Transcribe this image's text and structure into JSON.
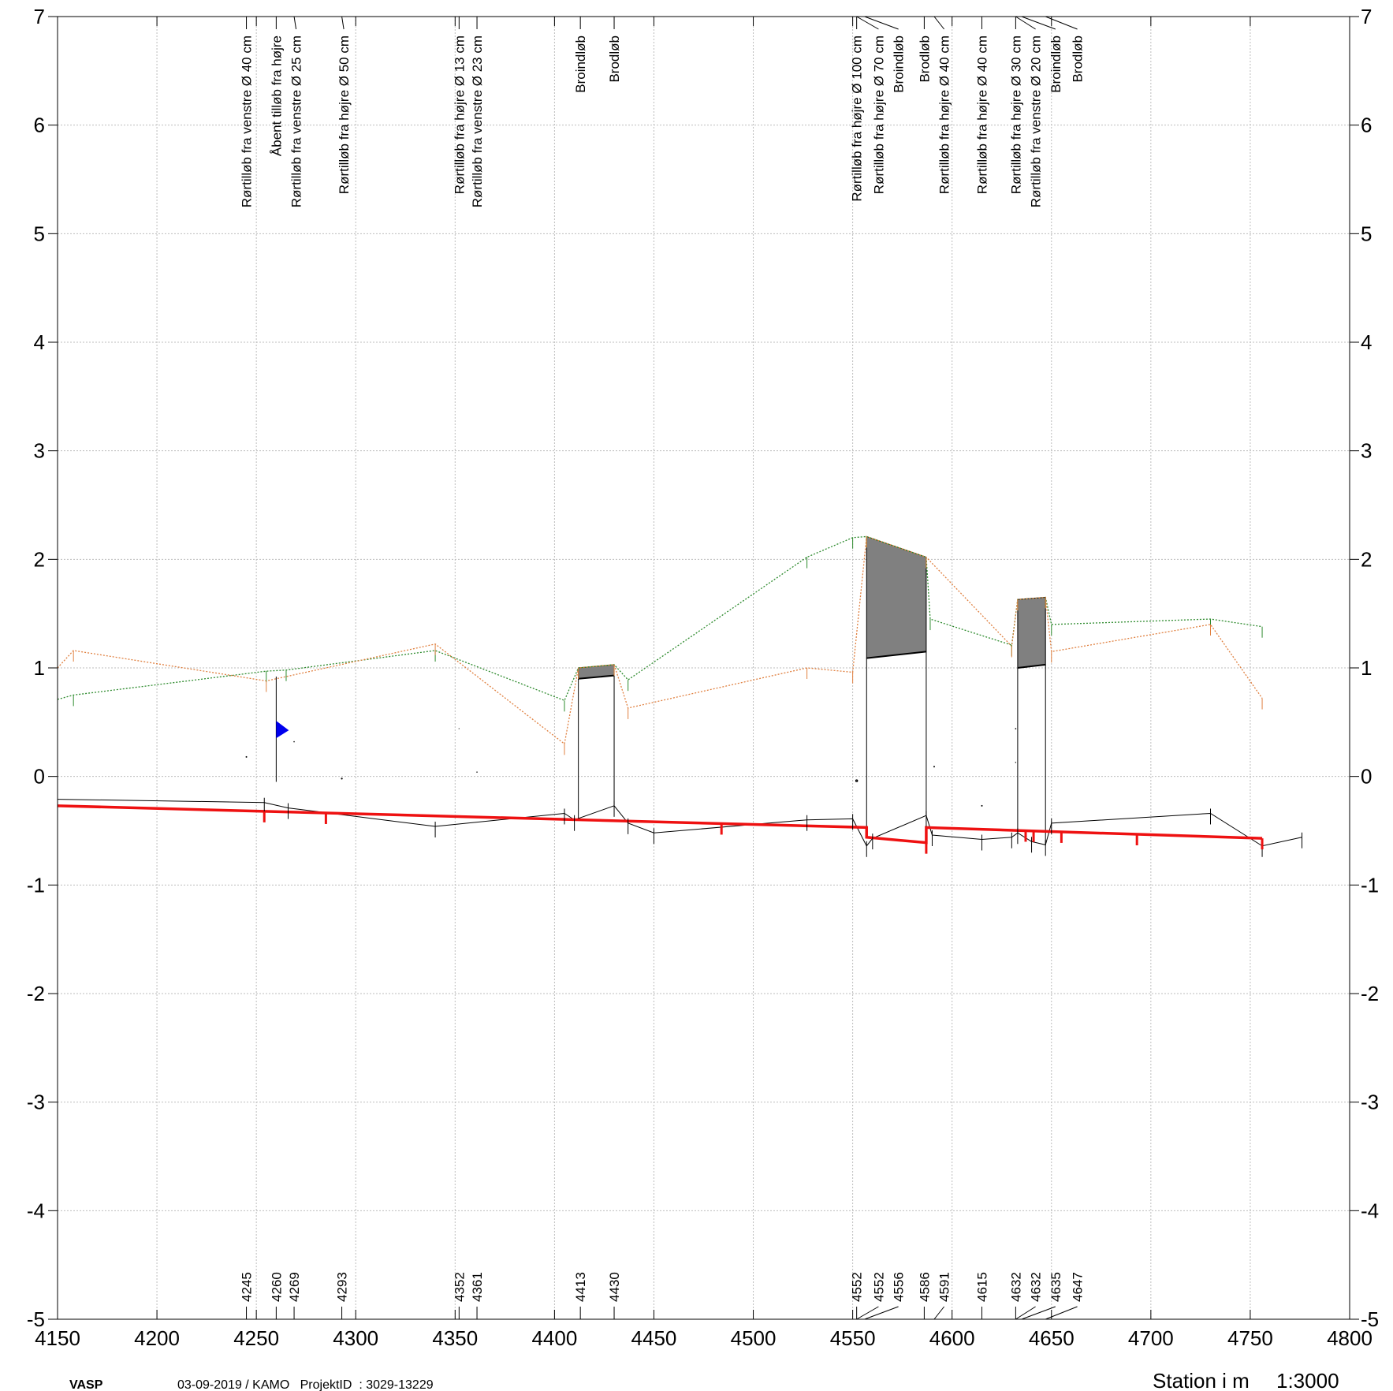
{
  "chart_data": {
    "type": "line",
    "xlabel": "Station i m",
    "scale": "1:3000",
    "xlim": [
      4150,
      4800
    ],
    "ylim": [
      -5,
      7
    ],
    "xticks": [
      "4150",
      "4200",
      "4250",
      "4300",
      "4350",
      "4400",
      "4450",
      "4500",
      "4550",
      "4600",
      "4650",
      "4700",
      "4750",
      "4800"
    ],
    "yticks": [
      "7",
      "6",
      "5",
      "4",
      "3",
      "2",
      "1",
      "0",
      "-1",
      "-2",
      "-3",
      "-4",
      "-5"
    ],
    "grid": true,
    "colors": {
      "terrain_green": "#2e8b2e",
      "terrain_orange": "#e08040",
      "pipe_red": "#ee1111",
      "bottom_black": "#000000",
      "wells_fill": "#808080",
      "flow_marker": "#0000ee"
    },
    "series": [
      {
        "key": "green",
        "x": [
          4150,
          4158,
          4255,
          4265,
          4340,
          4405,
          4412,
          4430,
          4437,
          4527,
          4550,
          4557,
          4587,
          4589,
          4630,
          4633,
          4647,
          4650,
          4730,
          4756
        ],
        "y": [
          0.71,
          0.75,
          0.97,
          0.98,
          1.16,
          0.7,
          1.0,
          1.03,
          0.89,
          2.02,
          2.2,
          2.21,
          2.02,
          1.45,
          1.21,
          1.63,
          1.65,
          1.4,
          1.45,
          1.38
        ]
      },
      {
        "key": "orange",
        "x": [
          4150,
          4158,
          4255,
          4340,
          4405,
          4412,
          4430,
          4437,
          4527,
          4550,
          4557,
          4587,
          4630,
          4633,
          4647,
          4650,
          4730,
          4756
        ],
        "y": [
          1.0,
          1.16,
          0.88,
          1.22,
          0.3,
          1.0,
          1.03,
          0.63,
          1.0,
          0.96,
          2.21,
          2.02,
          1.2,
          1.63,
          1.65,
          1.15,
          1.4,
          0.72
        ]
      },
      {
        "key": "bottom",
        "x": [
          4150,
          4254,
          4266,
          4340,
          4405,
          4410,
          4430,
          4437,
          4450,
          4527,
          4550,
          4557,
          4560,
          4587,
          4590,
          4615,
          4630,
          4633,
          4640,
          4647,
          4650,
          4730,
          4756,
          4776
        ],
        "y": [
          -0.21,
          -0.24,
          -0.29,
          -0.46,
          -0.34,
          -0.4,
          -0.27,
          -0.43,
          -0.52,
          -0.4,
          -0.39,
          -0.64,
          -0.57,
          -0.36,
          -0.54,
          -0.58,
          -0.56,
          -0.52,
          -0.6,
          -0.63,
          -0.43,
          -0.34,
          -0.64,
          -0.56
        ]
      },
      {
        "key": "pipe",
        "x": [
          4150,
          4557,
          4557,
          4587,
          4587,
          4756
        ],
        "y": [
          -0.27,
          -0.47,
          -0.56,
          -0.61,
          -0.47,
          -0.57
        ]
      }
    ],
    "pipe_ticks": [
      4254,
      4285,
      4484,
      4557,
      4587,
      4637,
      4641,
      4655,
      4693,
      4756
    ],
    "wells": [
      {
        "x1": 4412,
        "x2": 4430,
        "bottom": [
          -0.4,
          -0.27
        ],
        "cover": [
          0.9,
          0.93
        ],
        "rim": [
          1.0,
          1.03
        ]
      },
      {
        "x1": 4557,
        "x2": 4587,
        "bottom": [
          -0.57,
          -0.36
        ],
        "cover": [
          1.09,
          1.15
        ],
        "rim": [
          2.21,
          2.02
        ]
      },
      {
        "x1": 4633,
        "x2": 4647,
        "bottom": [
          -0.52,
          -0.63
        ],
        "cover": [
          1.0,
          1.03
        ],
        "rim": [
          1.63,
          1.65
        ]
      }
    ],
    "inlets": [
      {
        "x": 4245,
        "y": 0.18,
        "d": 40
      },
      {
        "x": 4269,
        "y": 0.32,
        "d": 25
      },
      {
        "x": 4293,
        "y": -0.02,
        "d": 50
      },
      {
        "x": 4352,
        "y": 0.44,
        "d": 13
      },
      {
        "x": 4361,
        "y": 0.04,
        "d": 23
      },
      {
        "x": 4552,
        "y": -0.04,
        "d": 100
      },
      {
        "x": 4552,
        "y": -0.04,
        "d": 70
      },
      {
        "x": 4591,
        "y": 0.09,
        "d": 40
      },
      {
        "x": 4615,
        "y": -0.27,
        "d": 40
      },
      {
        "x": 4632,
        "y": 0.44,
        "d": 30
      },
      {
        "x": 4632,
        "y": 0.13,
        "d": 20
      }
    ],
    "open_inlet": {
      "x": 4260,
      "y_top": 0.92,
      "y_bottom": -0.05,
      "marker_y": 0.44
    },
    "annotations": [
      {
        "x": 4245,
        "label_x": 4245,
        "text": "Rørtilløb fra venstre Ø 40 cm"
      },
      {
        "x": 4260,
        "label_x": 4260,
        "text": "Åbent tilløb fra højre"
      },
      {
        "x": 4269,
        "label_x": 4270,
        "text": "Rørtilløb fra venstre Ø 25 cm"
      },
      {
        "x": 4293,
        "label_x": 4294,
        "text": "Rørtilløb fra højre Ø 50 cm"
      },
      {
        "x": 4352,
        "label_x": 4352,
        "text": "Rørtilløb fra højre Ø 13 cm"
      },
      {
        "x": 4361,
        "label_x": 4361,
        "text": "Rørtilløb fra venstre Ø 23 cm"
      },
      {
        "x": 4413,
        "label_x": 4413,
        "text": "Broindløb"
      },
      {
        "x": 4430,
        "label_x": 4430,
        "text": "Brodløb"
      },
      {
        "x": 4552,
        "label_x": 4552,
        "text": "Rørtilløb fra højre Ø 100 cm"
      },
      {
        "x": 4552,
        "label_x": 4563,
        "text": "Rørtilløb fra højre Ø 70 cm"
      },
      {
        "x": 4556,
        "label_x": 4573,
        "text": "Broindløb"
      },
      {
        "x": 4586,
        "label_x": 4586,
        "text": "Brodløb"
      },
      {
        "x": 4591,
        "label_x": 4596,
        "text": "Rørtilløb fra højre Ø 40 cm"
      },
      {
        "x": 4615,
        "label_x": 4615,
        "text": "Rørtilløb fra højre Ø 40 cm"
      },
      {
        "x": 4632,
        "label_x": 4632,
        "text": "Rørtilløb fra højre Ø 30 cm"
      },
      {
        "x": 4632,
        "label_x": 4642,
        "text": "Rørtilløb fra venstre Ø 20 cm"
      },
      {
        "x": 4635,
        "label_x": 4652,
        "text": "Broindløb"
      },
      {
        "x": 4647,
        "label_x": 4663,
        "text": "Brodløb"
      }
    ],
    "stations": [
      {
        "x": 4245,
        "label_x": 4245,
        "text": "4245"
      },
      {
        "x": 4260,
        "label_x": 4260,
        "text": "4260"
      },
      {
        "x": 4269,
        "label_x": 4269,
        "text": "4269"
      },
      {
        "x": 4293,
        "label_x": 4293,
        "text": "4293"
      },
      {
        "x": 4352,
        "label_x": 4352,
        "text": "4352"
      },
      {
        "x": 4361,
        "label_x": 4361,
        "text": "4361"
      },
      {
        "x": 4413,
        "label_x": 4413,
        "text": "4413"
      },
      {
        "x": 4430,
        "label_x": 4430,
        "text": "4430"
      },
      {
        "x": 4552,
        "label_x": 4552,
        "text": "4552"
      },
      {
        "x": 4552,
        "label_x": 4563,
        "text": "4552"
      },
      {
        "x": 4556,
        "label_x": 4573,
        "text": "4556"
      },
      {
        "x": 4586,
        "label_x": 4586,
        "text": "4586"
      },
      {
        "x": 4591,
        "label_x": 4596,
        "text": "4591"
      },
      {
        "x": 4615,
        "label_x": 4615,
        "text": "4615"
      },
      {
        "x": 4632,
        "label_x": 4632,
        "text": "4632"
      },
      {
        "x": 4632,
        "label_x": 4642,
        "text": "4632"
      },
      {
        "x": 4635,
        "label_x": 4652,
        "text": "4635"
      },
      {
        "x": 4647,
        "label_x": 4663,
        "text": "4647"
      }
    ]
  },
  "footer": {
    "brand": "VASP",
    "info": "03-09-2019 / KAMO   ProjektID  : 3029-13229"
  }
}
